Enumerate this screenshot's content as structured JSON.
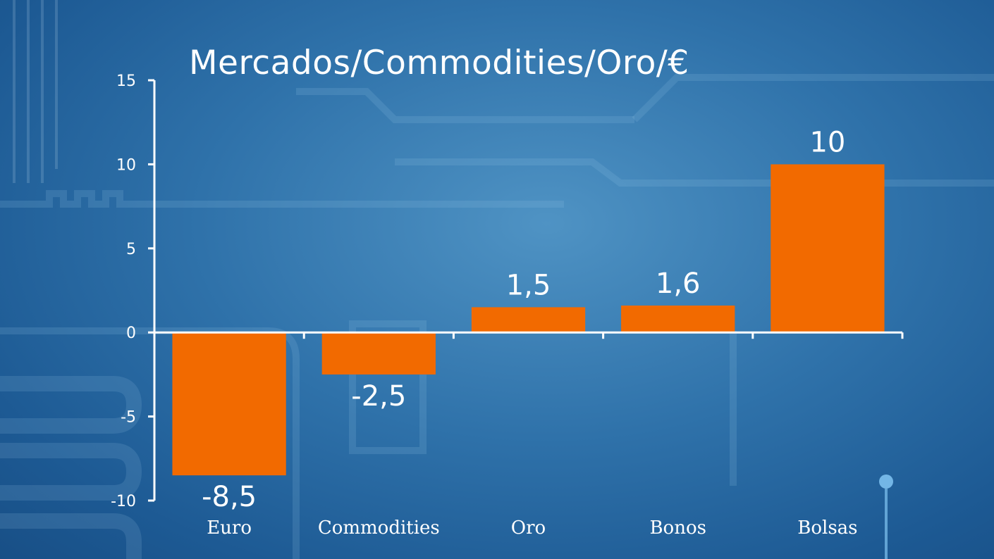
{
  "chart_data": {
    "type": "bar",
    "title": "Mercados/Commodities/Oro/€",
    "categories": [
      "Euro",
      "Commodities",
      "Oro",
      "Bonos",
      "Bolsas"
    ],
    "values": [
      -8.5,
      -2.5,
      1.5,
      1.6,
      10
    ],
    "data_labels": [
      "-8,5",
      "-2,5",
      "1,5",
      "1,6",
      "10"
    ],
    "ylim": [
      -10,
      15
    ],
    "yticks": [
      15,
      10,
      5,
      0,
      -5,
      -10
    ],
    "ytick_labels": [
      "15",
      "10",
      "5",
      "0",
      "-5",
      "-10"
    ],
    "xlabel": "",
    "ylabel": "",
    "grid": false,
    "legend": "none",
    "bar_color": "#f26a00",
    "axis_color": "#ffffff"
  }
}
